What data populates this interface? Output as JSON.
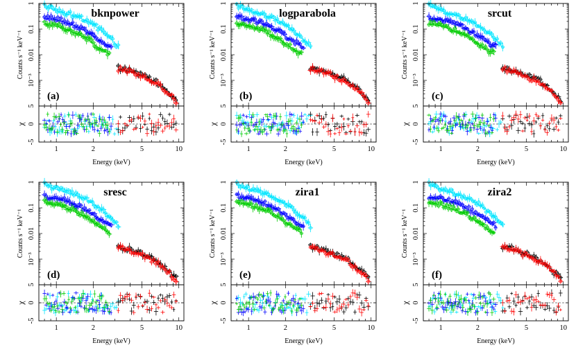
{
  "chart_data": [
    {
      "type": "scatter",
      "panel_label": "(a)",
      "model": "bknpower",
      "xlabel": "Energy (keV)",
      "ylabel_top": "Counts s⁻¹ keV⁻¹",
      "ylabel_bottom": "χ",
      "x_scale": "log",
      "xlim": [
        0.72,
        11
      ],
      "x_ticks": [
        "1",
        "2",
        "5",
        "10"
      ],
      "ylim_top": [
        0.0001,
        1
      ],
      "y_ticks_top": [
        "1",
        "0.1",
        "0.01",
        "10⁻³"
      ],
      "ylim_bottom": [
        -5,
        5
      ],
      "y_ticks_bottom": [
        "5",
        "0",
        "-5"
      ],
      "colors": {
        "cyan": "#00e5ff",
        "blue": "#0000ff",
        "green": "#00cc00",
        "black": "#000000",
        "red": "#ff0000"
      },
      "series": [
        {
          "color": "cyan",
          "energy_keV": [
            0.8,
            1.0,
            1.3,
            1.7,
            2.2,
            2.8,
            3.2
          ],
          "counts": [
            0.85,
            0.55,
            0.38,
            0.24,
            0.11,
            0.04,
            0.02
          ]
        },
        {
          "color": "blue",
          "energy_keV": [
            0.8,
            1.0,
            1.3,
            1.7,
            2.2,
            2.8
          ],
          "counts": [
            0.28,
            0.25,
            0.17,
            0.09,
            0.04,
            0.02
          ]
        },
        {
          "color": "green",
          "energy_keV": [
            0.8,
            1.0,
            1.3,
            1.7,
            2.2,
            2.7
          ],
          "counts": [
            0.17,
            0.14,
            0.09,
            0.05,
            0.02,
            0.011
          ]
        },
        {
          "color": "black",
          "energy_keV": [
            3.2,
            4.0,
            5.0,
            6.5,
            8.0,
            9.5
          ],
          "counts": [
            0.003,
            0.0024,
            0.0016,
            0.0009,
            0.0004,
            0.00018
          ]
        },
        {
          "color": "red",
          "energy_keV": [
            3.2,
            4.0,
            5.0,
            6.5,
            8.0,
            9.5
          ],
          "counts": [
            0.0028,
            0.0022,
            0.0014,
            0.0008,
            0.00035,
            0.00015
          ]
        }
      ]
    },
    {
      "type": "scatter",
      "panel_label": "(b)",
      "model": "logparabola",
      "xlabel": "Energy (keV)",
      "ylabel_top": "Counts s⁻¹ keV⁻¹",
      "ylabel_bottom": "χ",
      "x_scale": "log",
      "xlim": [
        0.72,
        11
      ],
      "x_ticks": [
        "1",
        "2",
        "5",
        "10"
      ],
      "ylim_top": [
        0.0001,
        1
      ],
      "y_ticks_top": [
        "1",
        "0.1",
        "0.01",
        "10⁻³"
      ],
      "ylim_bottom": [
        -5,
        5
      ],
      "y_ticks_bottom": [
        "5",
        "0",
        "-5"
      ],
      "colors": {
        "cyan": "#00e5ff",
        "blue": "#0000ff",
        "green": "#00cc00",
        "black": "#000000",
        "red": "#ff0000"
      },
      "series": [
        {
          "color": "cyan",
          "energy_keV": [
            0.8,
            1.0,
            1.3,
            1.7,
            2.2,
            2.8,
            3.2
          ],
          "counts": [
            0.85,
            0.55,
            0.38,
            0.24,
            0.11,
            0.04,
            0.02
          ]
        },
        {
          "color": "blue",
          "energy_keV": [
            0.8,
            1.0,
            1.3,
            1.7,
            2.2,
            2.8
          ],
          "counts": [
            0.28,
            0.25,
            0.17,
            0.09,
            0.04,
            0.02
          ]
        },
        {
          "color": "green",
          "energy_keV": [
            0.8,
            1.0,
            1.3,
            1.7,
            2.2,
            2.7
          ],
          "counts": [
            0.17,
            0.14,
            0.09,
            0.05,
            0.02,
            0.011
          ]
        },
        {
          "color": "black",
          "energy_keV": [
            3.2,
            4.0,
            5.0,
            6.5,
            8.0,
            9.5
          ],
          "counts": [
            0.003,
            0.0024,
            0.0016,
            0.0009,
            0.0004,
            0.00018
          ]
        },
        {
          "color": "red",
          "energy_keV": [
            3.2,
            4.0,
            5.0,
            6.5,
            8.0,
            9.5
          ],
          "counts": [
            0.0028,
            0.0022,
            0.0014,
            0.0008,
            0.00035,
            0.00015
          ]
        }
      ]
    },
    {
      "type": "scatter",
      "panel_label": "(c)",
      "model": "srcut",
      "xlabel": "Energy (keV)",
      "ylabel_top": "Counts s⁻¹ keV⁻¹",
      "ylabel_bottom": "χ",
      "x_scale": "log",
      "xlim": [
        0.72,
        11
      ],
      "x_ticks": [
        "1",
        "2",
        "5",
        "10"
      ],
      "ylim_top": [
        0.0001,
        1
      ],
      "y_ticks_top": [
        "1",
        "0.1",
        "0.01",
        "10⁻³"
      ],
      "ylim_bottom": [
        -5,
        5
      ],
      "y_ticks_bottom": [
        "5",
        "0",
        "-5"
      ],
      "colors": {
        "cyan": "#00e5ff",
        "blue": "#0000ff",
        "green": "#00cc00",
        "black": "#000000",
        "red": "#ff0000"
      },
      "series": [
        {
          "color": "cyan",
          "energy_keV": [
            0.8,
            1.0,
            1.3,
            1.7,
            2.2,
            2.8,
            3.2
          ],
          "counts": [
            0.85,
            0.55,
            0.38,
            0.24,
            0.11,
            0.04,
            0.02
          ]
        },
        {
          "color": "blue",
          "energy_keV": [
            0.8,
            1.0,
            1.3,
            1.7,
            2.2,
            2.8
          ],
          "counts": [
            0.28,
            0.25,
            0.17,
            0.09,
            0.04,
            0.02
          ]
        },
        {
          "color": "green",
          "energy_keV": [
            0.8,
            1.0,
            1.3,
            1.7,
            2.2,
            2.7
          ],
          "counts": [
            0.17,
            0.14,
            0.09,
            0.05,
            0.02,
            0.011
          ]
        },
        {
          "color": "black",
          "energy_keV": [
            3.2,
            4.0,
            5.0,
            6.5,
            8.0,
            9.5
          ],
          "counts": [
            0.003,
            0.0024,
            0.0016,
            0.0009,
            0.0004,
            0.00018
          ]
        },
        {
          "color": "red",
          "energy_keV": [
            3.2,
            4.0,
            5.0,
            6.5,
            8.0,
            9.5
          ],
          "counts": [
            0.0028,
            0.0022,
            0.0014,
            0.0008,
            0.00035,
            0.00015
          ]
        }
      ]
    },
    {
      "type": "scatter",
      "panel_label": "(d)",
      "model": "sresc",
      "xlabel": "Energy (keV)",
      "ylabel_top": "Counts s⁻¹ keV⁻¹",
      "ylabel_bottom": "χ",
      "x_scale": "log",
      "xlim": [
        0.72,
        11
      ],
      "x_ticks": [
        "1",
        "2",
        "5",
        "10"
      ],
      "ylim_top": [
        0.0001,
        1
      ],
      "y_ticks_top": [
        "1",
        "0.1",
        "0.01",
        "10⁻³"
      ],
      "ylim_bottom": [
        -5,
        5
      ],
      "y_ticks_bottom": [
        "5",
        "0",
        "-5"
      ],
      "colors": {
        "cyan": "#00e5ff",
        "blue": "#0000ff",
        "green": "#00cc00",
        "black": "#000000",
        "red": "#ff0000"
      },
      "series": [
        {
          "color": "cyan",
          "energy_keV": [
            0.8,
            1.0,
            1.3,
            1.7,
            2.2,
            2.8,
            3.2
          ],
          "counts": [
            0.85,
            0.55,
            0.38,
            0.24,
            0.11,
            0.04,
            0.02
          ]
        },
        {
          "color": "blue",
          "energy_keV": [
            0.8,
            1.0,
            1.3,
            1.7,
            2.2,
            2.8
          ],
          "counts": [
            0.28,
            0.25,
            0.17,
            0.09,
            0.04,
            0.02
          ]
        },
        {
          "color": "green",
          "energy_keV": [
            0.8,
            1.0,
            1.3,
            1.7,
            2.2,
            2.7
          ],
          "counts": [
            0.17,
            0.14,
            0.09,
            0.05,
            0.02,
            0.011
          ]
        },
        {
          "color": "black",
          "energy_keV": [
            3.2,
            4.0,
            5.0,
            6.5,
            8.0,
            9.5
          ],
          "counts": [
            0.003,
            0.0024,
            0.0016,
            0.0009,
            0.0004,
            0.00018
          ]
        },
        {
          "color": "red",
          "energy_keV": [
            3.2,
            4.0,
            5.0,
            6.5,
            8.0,
            9.5
          ],
          "counts": [
            0.0028,
            0.0022,
            0.0014,
            0.0008,
            0.00035,
            0.00015
          ]
        }
      ]
    },
    {
      "type": "scatter",
      "panel_label": "(e)",
      "model": "zira1",
      "xlabel": "Energy (keV)",
      "ylabel_top": "Counts s⁻¹ keV⁻¹",
      "ylabel_bottom": "χ",
      "x_scale": "log",
      "xlim": [
        0.72,
        11
      ],
      "x_ticks": [
        "1",
        "2",
        "5",
        "10"
      ],
      "ylim_top": [
        0.0001,
        1
      ],
      "y_ticks_top": [
        "1",
        "0.1",
        "0.01",
        "10⁻³"
      ],
      "ylim_bottom": [
        -5,
        5
      ],
      "y_ticks_bottom": [
        "5",
        "0",
        "-5"
      ],
      "colors": {
        "cyan": "#00e5ff",
        "blue": "#0000ff",
        "green": "#00cc00",
        "black": "#000000",
        "red": "#ff0000"
      },
      "series": [
        {
          "color": "cyan",
          "energy_keV": [
            0.8,
            1.0,
            1.3,
            1.7,
            2.2,
            2.8,
            3.2
          ],
          "counts": [
            0.85,
            0.55,
            0.38,
            0.24,
            0.11,
            0.04,
            0.02
          ]
        },
        {
          "color": "blue",
          "energy_keV": [
            0.8,
            1.0,
            1.3,
            1.7,
            2.2,
            2.8
          ],
          "counts": [
            0.28,
            0.25,
            0.17,
            0.09,
            0.04,
            0.02
          ]
        },
        {
          "color": "green",
          "energy_keV": [
            0.8,
            1.0,
            1.3,
            1.7,
            2.2,
            2.7
          ],
          "counts": [
            0.17,
            0.14,
            0.09,
            0.05,
            0.02,
            0.011
          ]
        },
        {
          "color": "black",
          "energy_keV": [
            3.2,
            4.0,
            5.0,
            6.5,
            8.0,
            9.5
          ],
          "counts": [
            0.003,
            0.0024,
            0.0016,
            0.0009,
            0.0004,
            0.00018
          ]
        },
        {
          "color": "red",
          "energy_keV": [
            3.2,
            4.0,
            5.0,
            6.5,
            8.0,
            9.5
          ],
          "counts": [
            0.0028,
            0.0022,
            0.0014,
            0.0008,
            0.00035,
            0.00015
          ]
        }
      ]
    },
    {
      "type": "scatter",
      "panel_label": "(f)",
      "model": "zira2",
      "xlabel": "Energy (keV)",
      "ylabel_top": "Counts s⁻¹ keV⁻¹",
      "ylabel_bottom": "χ",
      "x_scale": "log",
      "xlim": [
        0.72,
        11
      ],
      "x_ticks": [
        "1",
        "2",
        "5",
        "10"
      ],
      "ylim_top": [
        0.0001,
        1
      ],
      "y_ticks_top": [
        "1",
        "0.1",
        "0.01",
        "10⁻³"
      ],
      "ylim_bottom": [
        -5,
        5
      ],
      "y_ticks_bottom": [
        "5",
        "0",
        "-5"
      ],
      "colors": {
        "cyan": "#00e5ff",
        "blue": "#0000ff",
        "green": "#00cc00",
        "black": "#000000",
        "red": "#ff0000"
      },
      "series": [
        {
          "color": "cyan",
          "energy_keV": [
            0.8,
            1.0,
            1.3,
            1.7,
            2.2,
            2.8,
            3.2
          ],
          "counts": [
            0.85,
            0.55,
            0.38,
            0.24,
            0.11,
            0.04,
            0.02
          ]
        },
        {
          "color": "blue",
          "energy_keV": [
            0.8,
            1.0,
            1.3,
            1.7,
            2.2,
            2.8
          ],
          "counts": [
            0.28,
            0.25,
            0.17,
            0.09,
            0.04,
            0.02
          ]
        },
        {
          "color": "green",
          "energy_keV": [
            0.8,
            1.0,
            1.3,
            1.7,
            2.2,
            2.7
          ],
          "counts": [
            0.17,
            0.14,
            0.09,
            0.05,
            0.02,
            0.011
          ]
        },
        {
          "color": "black",
          "energy_keV": [
            3.2,
            4.0,
            5.0,
            6.5,
            8.0,
            9.5
          ],
          "counts": [
            0.003,
            0.0024,
            0.0016,
            0.0009,
            0.0004,
            0.00018
          ]
        },
        {
          "color": "red",
          "energy_keV": [
            3.2,
            4.0,
            5.0,
            6.5,
            8.0,
            9.5
          ],
          "counts": [
            0.0028,
            0.0022,
            0.0014,
            0.0008,
            0.00035,
            0.00015
          ]
        }
      ]
    }
  ]
}
